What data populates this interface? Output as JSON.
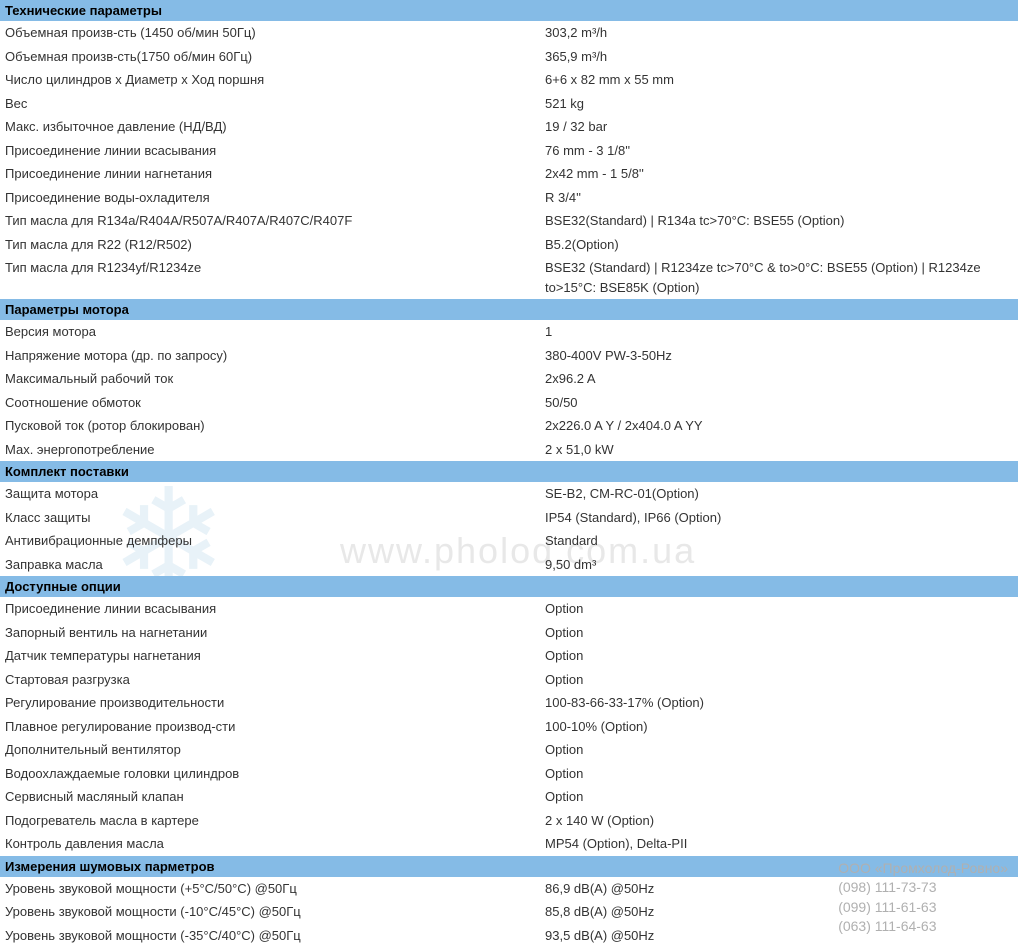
{
  "colors": {
    "header_bg": "#85bbe6",
    "text": "#333333",
    "watermark_url": "#e8e8e8",
    "watermark_snow": "#e8f2f8",
    "contact": "#b0b0b0",
    "background": "#ffffff"
  },
  "watermark": {
    "url": "www.pholod.com.ua",
    "snowflake": "❄"
  },
  "contact": {
    "company": "ООО «Промхолод-Ровно»",
    "phone1": "(098) 111-73-73",
    "phone2": "(099) 111-61-63",
    "phone3": "(063) 111-64-63"
  },
  "sections": [
    {
      "title": "Технические параметры",
      "rows": [
        {
          "label": "Объемная произв-сть (1450 об/мин 50Гц)",
          "value": "303,2 m³/h"
        },
        {
          "label": "Объемная произв-сть(1750 об/мин 60Гц)",
          "value": "365,9 m³/h"
        },
        {
          "label": "Число цилиндров x Диаметр x Ход поршня",
          "value": "6+6 x 82 mm x 55 mm"
        },
        {
          "label": "Вес",
          "value": "521 kg"
        },
        {
          "label": "Макс. избыточное давление (НД/ВД)",
          "value": "19 / 32 bar"
        },
        {
          "label": "Присоединение линии всасывания",
          "value": "76 mm - 3 1/8''"
        },
        {
          "label": "Присоединение линии нагнетания",
          "value": "2x42 mm - 1 5/8''"
        },
        {
          "label": "Присоединение воды-охладителя",
          "value": "R 3/4''"
        },
        {
          "label": "Тип масла для R134a/R404A/R507A/R407A/R407C/R407F",
          "value": "BSE32(Standard) | R134a tc>70°C: BSE55 (Option)"
        },
        {
          "label": "Тип масла для R22 (R12/R502)",
          "value": "B5.2(Option)"
        },
        {
          "label": "Тип масла для R1234yf/R1234ze",
          "value": "BSE32 (Standard) | R1234ze tc>70°C & to>0°C: BSE55 (Option) | R1234ze to>15°C: BSE85K (Option)"
        }
      ]
    },
    {
      "title": "Параметры мотора",
      "rows": [
        {
          "label": "Версия мотора",
          "value": "1"
        },
        {
          "label": "Напряжение мотора (др. по запросу)",
          "value": "380-400V PW-3-50Hz"
        },
        {
          "label": "Максимальный рабочий ток",
          "value": "2x96.2 A"
        },
        {
          "label": "Соотношение обмоток",
          "value": "50/50"
        },
        {
          "label": "Пусковой ток (ротор блокирован)",
          "value": "2x226.0 A Y / 2x404.0 A YY"
        },
        {
          "label": "Мах. энергопотребление",
          "value": "2 x 51,0 kW"
        }
      ]
    },
    {
      "title": "Комплект поставки",
      "rows": [
        {
          "label": "Защита мотора",
          "value": "SE-B2, CM-RC-01(Option)"
        },
        {
          "label": "Класс защиты",
          "value": "IP54 (Standard), IP66 (Option)"
        },
        {
          "label": "Антивибрационные демпферы",
          "value": "Standard"
        },
        {
          "label": "Заправка масла",
          "value": "9,50 dm³"
        }
      ]
    },
    {
      "title": "Доступные опции",
      "rows": [
        {
          "label": "Присоединение линии всасывания",
          "value": "Option"
        },
        {
          "label": "Запорный вентиль на нагнетании",
          "value": "Option"
        },
        {
          "label": "Датчик температуры нагнетания",
          "value": "Option"
        },
        {
          "label": "Стартовая разгрузка",
          "value": "Option"
        },
        {
          "label": "Регулирование производительности",
          "value": "100-83-66-33-17% (Option)"
        },
        {
          "label": "Плавное регулирование производ-сти",
          "value": "100-10% (Option)"
        },
        {
          "label": "Дополнительный вентилятор",
          "value": "Option"
        },
        {
          "label": "Водоохлаждаемые головки цилиндров",
          "value": "Option"
        },
        {
          "label": "Сервисный масляный клапан",
          "value": "Option"
        },
        {
          "label": "Подогреватель масла в картере",
          "value": "2 x 140 W (Option)"
        },
        {
          "label": "Контроль давления масла",
          "value": "MP54 (Option), Delta-PII"
        }
      ]
    },
    {
      "title": "Измерения шумовых парметров",
      "rows": [
        {
          "label": "Уровень звуковой мощности (+5°C/50°C) @50Гц",
          "value": "86,9 dB(A) @50Hz"
        },
        {
          "label": "Уровень звуковой мощности (-10°C/45°C) @50Гц",
          "value": "85,8 dB(A) @50Hz"
        },
        {
          "label": "Уровень звуковой мощности (-35°C/40°C) @50Гц",
          "value": "93,5 dB(A) @50Hz"
        }
      ]
    }
  ]
}
